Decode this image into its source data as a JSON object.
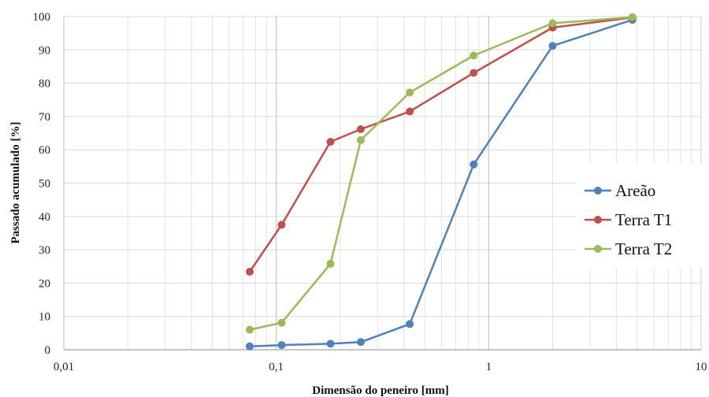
{
  "chart_data": {
    "type": "line",
    "xscale": "log",
    "xlim": [
      0.01,
      10
    ],
    "ylim": [
      0,
      100
    ],
    "xlabel": "Dimensão do peneiro [mm]",
    "ylabel": "Passado acumulado [%]",
    "x_ticks": [
      "0,01",
      "0,1",
      "1",
      "10"
    ],
    "y_ticks": [
      "0",
      "10",
      "20",
      "30",
      "40",
      "50",
      "60",
      "70",
      "80",
      "90",
      "100"
    ],
    "grid": true,
    "legend_position": "right",
    "series": [
      {
        "name": "Areão",
        "color": "#4f81bd",
        "x": [
          0.075,
          0.106,
          0.18,
          0.25,
          0.425,
          0.85,
          2.0,
          4.75
        ],
        "values": [
          1.0,
          1.4,
          1.8,
          2.3,
          7.7,
          55.6,
          91.2,
          99.0
        ]
      },
      {
        "name": "Terra T1",
        "color": "#c0504d",
        "x": [
          0.075,
          0.106,
          0.18,
          0.25,
          0.425,
          0.85,
          2.0,
          4.75
        ],
        "values": [
          23.4,
          37.5,
          62.4,
          66.2,
          71.5,
          83.1,
          96.7,
          99.7
        ]
      },
      {
        "name": "Terra T2",
        "color": "#9bbb59",
        "x": [
          0.075,
          0.106,
          0.18,
          0.25,
          0.425,
          0.85,
          2.0,
          4.75
        ],
        "values": [
          6.0,
          8.1,
          25.8,
          62.9,
          77.2,
          88.3,
          98.0,
          99.8
        ]
      }
    ]
  }
}
